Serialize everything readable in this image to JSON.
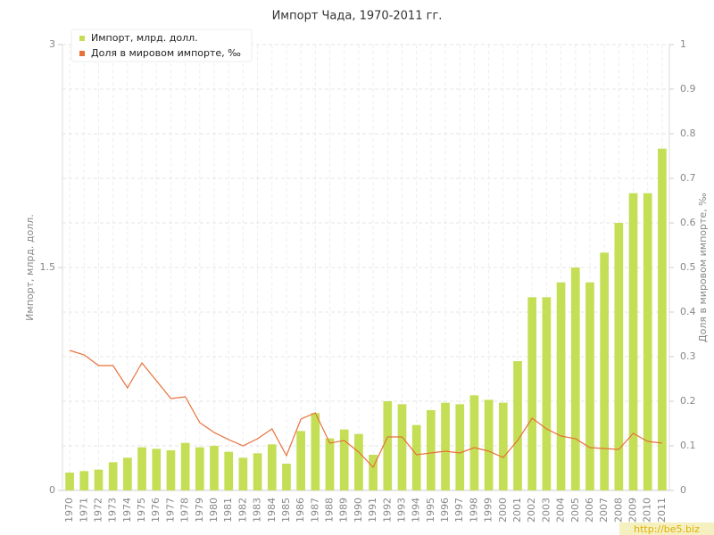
{
  "chart_data": {
    "type": "bar",
    "title": "Импорт Чада, 1970-2011 гг.",
    "y_label": "Импорт, млрд. долл.",
    "y2_label": "Доля в мировом импорте, ‰",
    "watermark": "http://be5.biz",
    "categories": [
      "1970",
      "1971",
      "1972",
      "1973",
      "1974",
      "1975",
      "1976",
      "1977",
      "1978",
      "1979",
      "1980",
      "1981",
      "1982",
      "1983",
      "1984",
      "1985",
      "1986",
      "1987",
      "1988",
      "1989",
      "1990",
      "1991",
      "1992",
      "1993",
      "1994",
      "1995",
      "1996",
      "1997",
      "1998",
      "1999",
      "2000",
      "2001",
      "2002",
      "2003",
      "2004",
      "2005",
      "2006",
      "2007",
      "2008",
      "2009",
      "2010",
      "2011"
    ],
    "series": [
      {
        "name": "Импорт, млрд. долл.",
        "type": "bar",
        "color": "#c4df55",
        "values": [
          0.12,
          0.13,
          0.14,
          0.19,
          0.22,
          0.29,
          0.28,
          0.27,
          0.32,
          0.29,
          0.3,
          0.26,
          0.22,
          0.25,
          0.31,
          0.18,
          0.4,
          0.52,
          0.35,
          0.41,
          0.38,
          0.24,
          0.6,
          0.58,
          0.44,
          0.54,
          0.59,
          0.58,
          0.64,
          0.61,
          0.59,
          0.87,
          1.3,
          1.3,
          1.4,
          1.5,
          1.4,
          1.6,
          1.8,
          2.0,
          2.0,
          2.3
        ]
      },
      {
        "name": "Доля в мировом импорте, ‰",
        "type": "line",
        "axis": "y2",
        "color": "#e8703a",
        "values": [
          0.314,
          0.304,
          0.28,
          0.28,
          0.23,
          0.286,
          0.246,
          0.206,
          0.21,
          0.152,
          0.13,
          0.114,
          0.1,
          0.116,
          0.138,
          0.078,
          0.16,
          0.174,
          0.106,
          0.112,
          0.086,
          0.052,
          0.12,
          0.12,
          0.08,
          0.084,
          0.088,
          0.084,
          0.096,
          0.088,
          0.074,
          0.112,
          0.162,
          0.138,
          0.122,
          0.116,
          0.096,
          0.094,
          0.092,
          0.128,
          0.11,
          0.106
        ]
      }
    ],
    "ylim": [
      0,
      3
    ],
    "yticks": [
      0,
      1.5,
      3
    ],
    "y2lim": [
      0,
      1
    ],
    "y2ticks": [
      0,
      0.1,
      0.2,
      0.3,
      0.4,
      0.5,
      0.6,
      0.7,
      0.8,
      0.9,
      1
    ],
    "grid": true,
    "legend": "top-left"
  }
}
